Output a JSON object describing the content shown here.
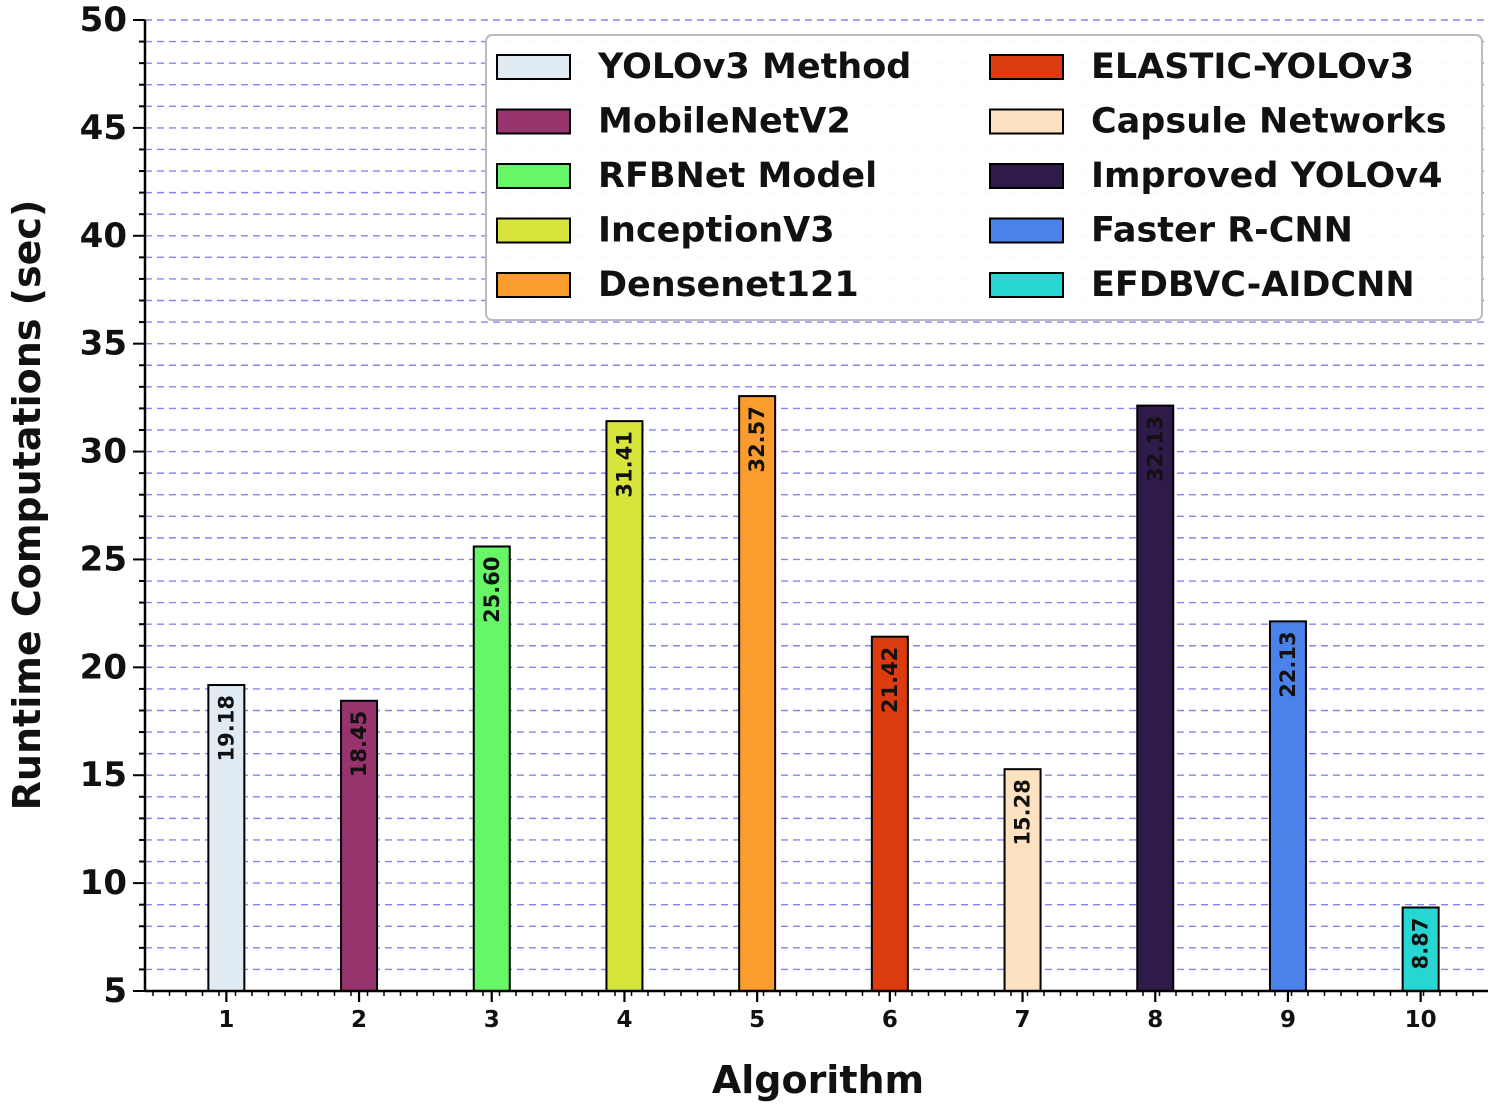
{
  "chart_data": {
    "type": "bar",
    "title": "",
    "xlabel": "Algorithm",
    "ylabel": "Runtime Computations (sec)",
    "ylim": [
      5,
      50
    ],
    "yticks": [
      5,
      10,
      15,
      20,
      25,
      30,
      35,
      40,
      45,
      50
    ],
    "y_minor_step": 1,
    "grid": true,
    "legend_location": "top-right",
    "categories": [
      "1",
      "2",
      "3",
      "4",
      "5",
      "6",
      "7",
      "8",
      "9",
      "10"
    ],
    "values": [
      19.18,
      18.45,
      25.6,
      31.41,
      32.57,
      21.42,
      15.28,
      32.13,
      22.13,
      8.87
    ],
    "value_labels": [
      "19.18",
      "18.45",
      "25.60",
      "31.41",
      "32.57",
      "21.42",
      "15.28",
      "32.13",
      "22.13",
      "8.87"
    ],
    "series_names": [
      "YOLOv3 Method",
      "MobileNetV2",
      "RFBNet Model",
      "InceptionV3",
      "Densenet121",
      "ELASTIC-YOLOv3",
      "Capsule Networks",
      "Improved YOLOv4",
      "Faster R-CNN",
      "EFDBVC-AIDCNN"
    ],
    "colors": [
      "#e1ebf3",
      "#97336d",
      "#66f666",
      "#d7e43b",
      "#fb9c2e",
      "#db3b0e",
      "#fde2c2",
      "#2f1b4a",
      "#4a82ea",
      "#26d6d3"
    ],
    "bar_edge_color": "#000000",
    "grid_color": "#7070ee"
  }
}
